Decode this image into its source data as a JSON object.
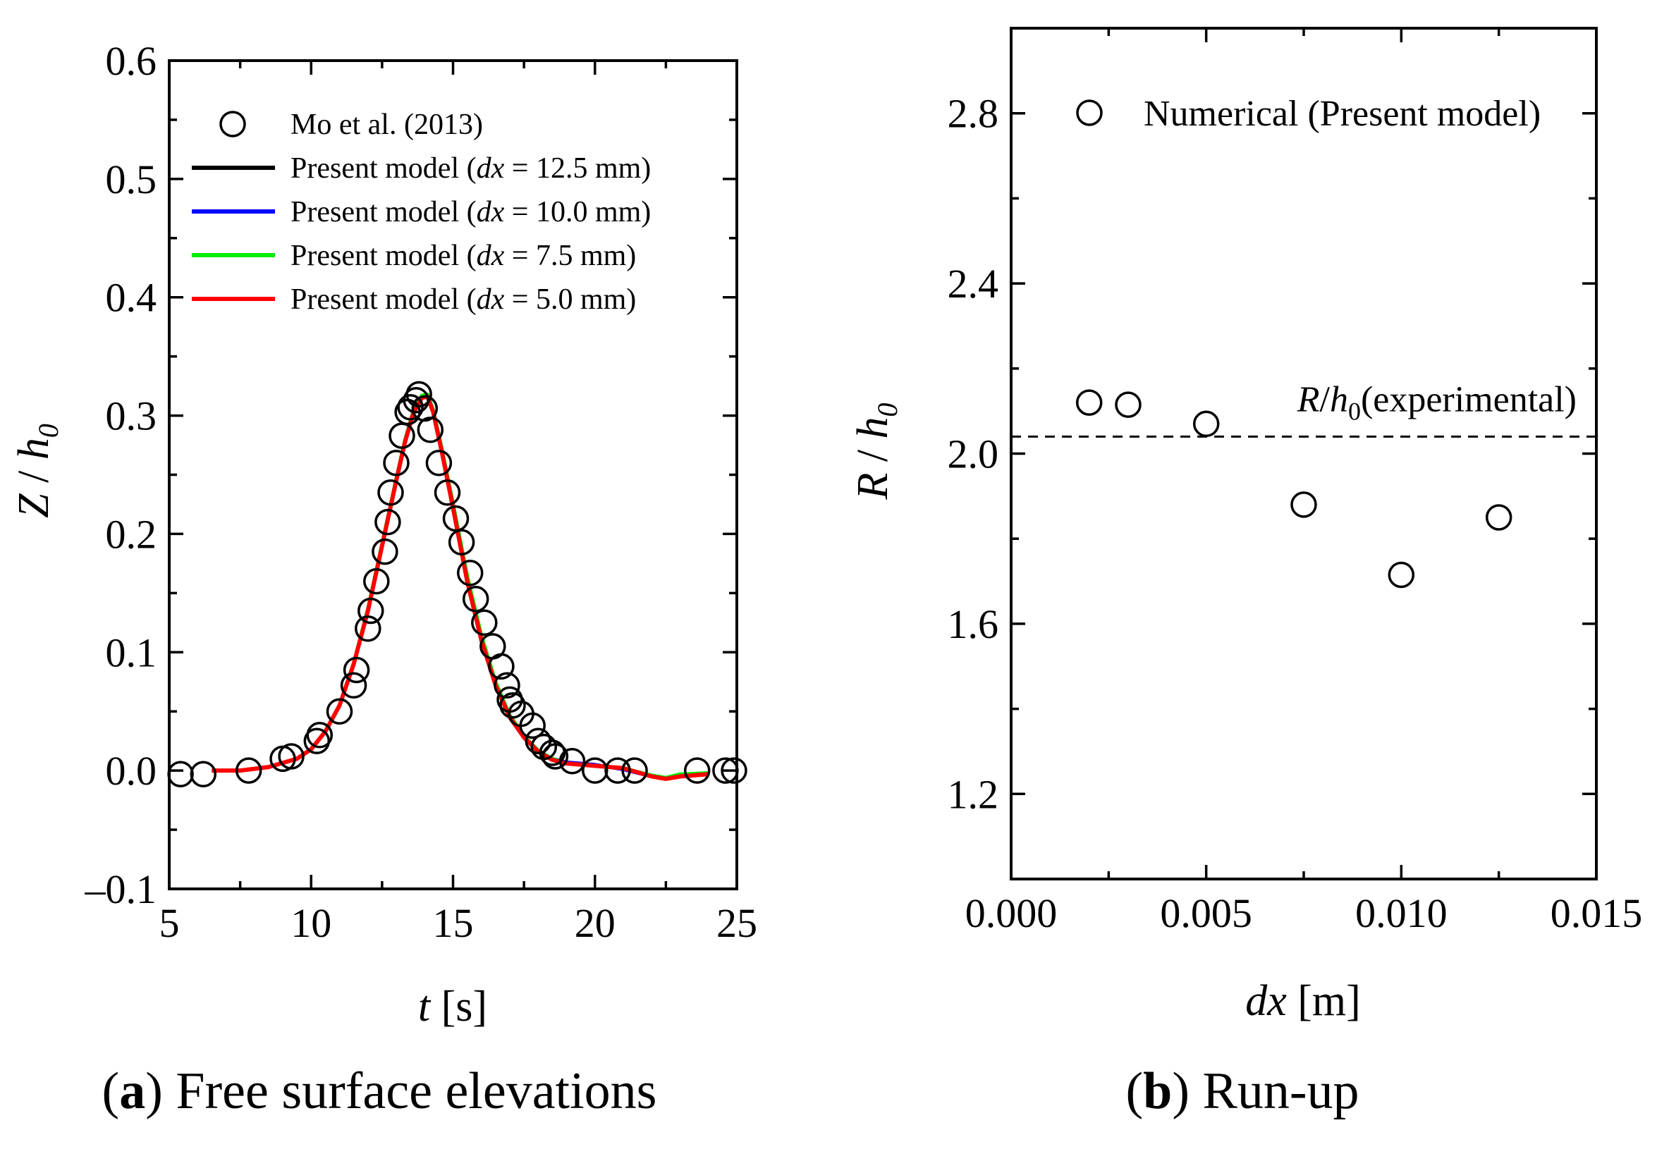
{
  "chart_data": [
    {
      "type": "line",
      "panel": "a",
      "caption_letter": "a",
      "caption_text": " Free surface elevations",
      "xlabel_var": "t",
      "xlabel_unit": " [s]",
      "ylabel_var": "Z",
      "ylabel_mid": " / ",
      "ylabel_h": "h",
      "ylabel_sub": "0",
      "xlim": [
        5,
        25
      ],
      "ylim": [
        -0.1,
        0.6
      ],
      "xticks": [
        5,
        10,
        15,
        20,
        25
      ],
      "xtick_labels": [
        "5",
        "10",
        "15",
        "20",
        "25"
      ],
      "yticks": [
        -0.1,
        0.0,
        0.1,
        0.2,
        0.3,
        0.4,
        0.5,
        0.6
      ],
      "ytick_labels": [
        "–0.1",
        "0.0",
        "0.1",
        "0.2",
        "0.3",
        "0.4",
        "0.5",
        "0.6"
      ],
      "legend": {
        "experimental": "Mo et al. (2013)",
        "series_prefix": "Present model (",
        "dx_symbol": "dx",
        "suffix": " mm)"
      },
      "experimental": {
        "name": "Mo et al. (2013)",
        "t": [
          5.4,
          6.2,
          7.8,
          9.0,
          9.3,
          10.2,
          10.3,
          11.0,
          11.5,
          11.6,
          12.0,
          12.1,
          12.3,
          12.6,
          12.7,
          12.8,
          13.0,
          13.2,
          13.4,
          13.5,
          13.7,
          13.8,
          14.0,
          14.2,
          14.5,
          14.8,
          15.1,
          15.3,
          15.6,
          15.8,
          16.1,
          16.4,
          16.7,
          16.9,
          17.0,
          17.1,
          17.4,
          17.8,
          18.0,
          18.2,
          18.5,
          18.6,
          19.2,
          20.0,
          20.8,
          21.4,
          23.6,
          24.6,
          24.9
        ],
        "z": [
          -0.003,
          -0.003,
          0.0,
          0.01,
          0.012,
          0.025,
          0.03,
          0.05,
          0.072,
          0.085,
          0.12,
          0.135,
          0.16,
          0.185,
          0.21,
          0.235,
          0.26,
          0.283,
          0.303,
          0.307,
          0.313,
          0.318,
          0.306,
          0.288,
          0.26,
          0.235,
          0.213,
          0.193,
          0.167,
          0.145,
          0.125,
          0.105,
          0.088,
          0.072,
          0.06,
          0.055,
          0.048,
          0.038,
          0.025,
          0.02,
          0.015,
          0.012,
          0.008,
          0.0,
          0.0,
          0.0,
          0.0,
          0.0,
          0.0
        ]
      },
      "series": [
        {
          "dx_value": "12.5",
          "color": "#000000",
          "t": [
            6.5,
            7.5,
            8.5,
            9.5,
            10.0,
            10.5,
            11.0,
            11.5,
            12.0,
            12.5,
            13.0,
            13.3,
            13.6,
            13.9,
            14.1,
            14.3,
            14.6,
            15.0,
            15.5,
            16.0,
            16.5,
            17.0,
            17.5,
            18.0,
            18.5,
            19.0,
            20.0,
            21.0,
            22.0,
            22.5,
            23.0,
            24.0
          ],
          "z": [
            0.0,
            0.0,
            0.003,
            0.01,
            0.018,
            0.033,
            0.055,
            0.09,
            0.135,
            0.19,
            0.245,
            0.277,
            0.302,
            0.316,
            0.317,
            0.303,
            0.27,
            0.222,
            0.16,
            0.11,
            0.072,
            0.045,
            0.028,
            0.016,
            0.009,
            0.006,
            0.004,
            0.002,
            -0.005,
            -0.007,
            -0.005,
            -0.003
          ]
        },
        {
          "dx_value": "10.0",
          "color": "#0000ff",
          "t": [
            6.5,
            7.5,
            8.5,
            9.5,
            10.0,
            10.5,
            11.0,
            11.5,
            12.0,
            12.5,
            13.0,
            13.3,
            13.6,
            13.9,
            14.1,
            14.3,
            14.6,
            15.0,
            15.5,
            16.0,
            16.5,
            17.0,
            17.5,
            18.0,
            18.5,
            19.0,
            20.0,
            21.0,
            22.0,
            22.5,
            23.0,
            24.0
          ],
          "z": [
            0.0,
            0.0,
            0.003,
            0.01,
            0.018,
            0.033,
            0.055,
            0.09,
            0.135,
            0.19,
            0.245,
            0.277,
            0.302,
            0.315,
            0.316,
            0.303,
            0.27,
            0.222,
            0.161,
            0.111,
            0.073,
            0.046,
            0.029,
            0.017,
            0.01,
            0.007,
            0.005,
            0.001,
            -0.005,
            -0.007,
            -0.005,
            -0.003
          ]
        },
        {
          "dx_value": "7.5",
          "color": "#00ee00",
          "t": [
            6.5,
            7.5,
            8.5,
            9.5,
            10.0,
            10.5,
            11.0,
            11.5,
            12.0,
            12.5,
            13.0,
            13.3,
            13.6,
            13.9,
            14.1,
            14.3,
            14.6,
            15.0,
            15.5,
            16.0,
            16.5,
            17.0,
            17.5,
            18.0,
            18.5,
            19.0,
            20.0,
            21.0,
            22.0,
            22.5,
            23.0,
            24.0
          ],
          "z": [
            0.0,
            0.0,
            0.003,
            0.01,
            0.018,
            0.033,
            0.055,
            0.091,
            0.137,
            0.192,
            0.247,
            0.279,
            0.304,
            0.317,
            0.318,
            0.305,
            0.273,
            0.226,
            0.165,
            0.114,
            0.075,
            0.047,
            0.029,
            0.017,
            0.01,
            0.006,
            0.004,
            0.002,
            -0.004,
            -0.006,
            -0.003,
            -0.002
          ]
        },
        {
          "dx_value": "5.0",
          "color": "#ff0000",
          "t": [
            6.5,
            7.5,
            8.5,
            9.5,
            10.0,
            10.5,
            11.0,
            11.5,
            12.0,
            12.5,
            13.0,
            13.3,
            13.6,
            13.9,
            14.1,
            14.3,
            14.6,
            15.0,
            15.5,
            16.0,
            16.5,
            17.0,
            17.5,
            18.0,
            18.5,
            19.0,
            20.0,
            21.0,
            22.0,
            22.5,
            23.0,
            24.0
          ],
          "z": [
            0.0,
            0.0,
            0.003,
            0.01,
            0.018,
            0.033,
            0.055,
            0.09,
            0.135,
            0.19,
            0.245,
            0.277,
            0.302,
            0.315,
            0.316,
            0.303,
            0.27,
            0.222,
            0.16,
            0.11,
            0.072,
            0.045,
            0.028,
            0.016,
            0.009,
            0.006,
            0.004,
            0.002,
            -0.005,
            -0.007,
            -0.005,
            -0.003
          ]
        }
      ]
    },
    {
      "type": "scatter",
      "panel": "b",
      "caption_letter": "b",
      "caption_text": " Run-up",
      "xlabel_var": "dx",
      "xlabel_unit": " [m]",
      "ylabel_var": "R",
      "ylabel_mid": " / ",
      "ylabel_h": "h",
      "ylabel_sub": "0",
      "xlim": [
        0.0,
        0.015
      ],
      "ylim": [
        1.0,
        3.0
      ],
      "xticks": [
        0.0,
        0.005,
        0.01,
        0.015
      ],
      "xtick_labels": [
        "0.000",
        "0.005",
        "0.010",
        "0.015"
      ],
      "yticks": [
        1.2,
        1.6,
        2.0,
        2.4,
        2.8
      ],
      "ytick_labels": [
        "1.2",
        "1.6",
        "2.0",
        "2.4",
        "2.8"
      ],
      "legend": {
        "numerical": "Numerical (Present model)"
      },
      "points": {
        "name": "Numerical (Present model)",
        "x": [
          0.002,
          0.003,
          0.005,
          0.0075,
          0.01,
          0.0125
        ],
        "y": [
          2.12,
          2.115,
          2.07,
          1.88,
          1.715,
          1.85
        ]
      },
      "reference_line": {
        "y": 2.04,
        "label_var": "R",
        "label_mid": "/",
        "label_h": "h",
        "label_sub": "0",
        "label_rest": "(experimental)"
      }
    }
  ]
}
